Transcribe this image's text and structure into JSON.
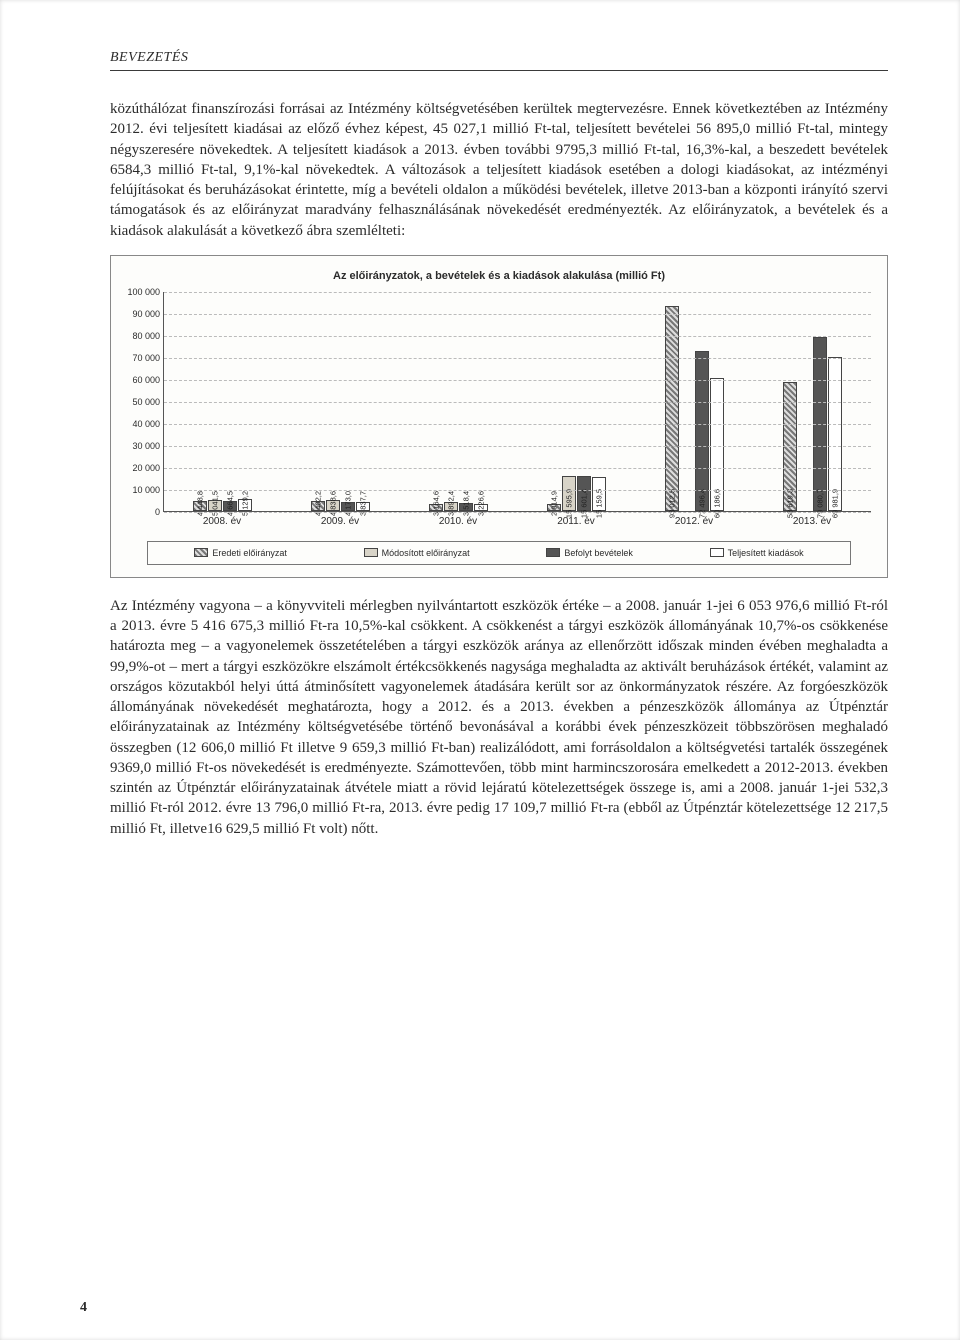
{
  "header": "BEVEZETÉS",
  "para1": "közúthálózat finanszírozási forrásai az Intézmény költségvetésében kerültek megtervezésre. Ennek következtében az Intézmény 2012. évi teljesített kiadásai az előző évhez képest, 45 027,1 millió Ft-tal, teljesített bevételei 56 895,0 millió Ft-tal, mintegy négyszeresére növekedtek. A teljesített kiadások a 2013. évben további 9795,3 millió Ft-tal, 16,3%-kal, a beszedett bevételek 6584,3 millió Ft-tal, 9,1%-kal növekedtek. A változások a teljesített kiadások esetében a dologi kiadásokat, az intézményi felújításokat és beruházásokat érintette, míg a bevételi oldalon a működési bevételek, illetve 2013-ban a központi irányító szervi támogatások és az előirányzat maradvány felhasználásának növekedését eredményezték. Az előirányzatok, a bevételek és a kiadások alakulását a következő ábra szemlélteti:",
  "chart": {
    "title": "Az előirányzatok, a bevételek és a kiadások alakulása (millió Ft)",
    "ymax": 100000,
    "ytick_step": 10000,
    "background": "#fdfdfb",
    "grid_color": "#bbbbbb",
    "categories": [
      "2008. év",
      "2009. év",
      "2010. év",
      "2011. év",
      "2012. év",
      "2013. év"
    ],
    "series_colors": [
      "#8a8a8a",
      "#d8d4c8",
      "#555555",
      "#ffffff"
    ],
    "series_patterns": [
      "hatched",
      "light",
      "dark",
      "white"
    ],
    "legend": [
      "Eredeti előirányzat",
      "Módosított előirányzat",
      "Befolyt bevételek",
      "Teljesített kiadások"
    ],
    "data": [
      [
        "4 448,8",
        "5 041,5",
        "4 664,5",
        "5 129,2"
      ],
      [
        "4 402,2",
        "4 838,6",
        "4 173,0",
        "3 837,7"
      ],
      [
        "3 164,6",
        "3 892,4",
        "3 518,4",
        "3 226,6"
      ],
      [
        "2 914,9",
        "15 595,9",
        "15 601,4",
        "15 159,5"
      ],
      [
        "93 012,5",
        "",
        "72 496,4",
        "60 186,6"
      ],
      [
        "58 619,3",
        "",
        "79 080,7",
        "69 981,9"
      ]
    ],
    "data_numeric": [
      [
        4448.8,
        5041.5,
        4664.5,
        5129.2
      ],
      [
        4402.2,
        4838.6,
        4173.0,
        3837.7
      ],
      [
        3164.6,
        3892.4,
        3518.4,
        3226.6
      ],
      [
        2914.9,
        15595.9,
        15601.4,
        15159.5
      ],
      [
        93012.5,
        0,
        72496.4,
        60186.6
      ],
      [
        58619.3,
        0,
        79080.7,
        69981.9
      ]
    ]
  },
  "para2": "Az Intézmény vagyona – a könyvviteli mérlegben nyilvántartott eszközök értéke – a 2008. január 1-jei 6 053 976,6 millió Ft-ról a 2013. évre 5 416 675,3 millió Ft-ra 10,5%-kal csökkent. A csökkenést a tárgyi eszközök állományának 10,7%-os csökkenése határozta meg – a vagyonelemek összetételében a tárgyi eszközök aránya az ellenőrzött időszak minden évében meghaladta a 99,9%-ot – mert a tárgyi eszközökre elszámolt értékcsökkenés nagysága meghaladta az aktivált beruházások értékét, valamint az országos közutakból helyi úttá átminősített vagyonelemek átadására került sor az önkormányzatok részére. Az forgóeszközök állományának növekedését meghatározta, hogy a 2012. és a 2013. években a pénzeszközök állománya az Útpénztár előirányzatainak az Intézmény költségvetésébe történő bevonásával a korábbi évek pénzeszközeit többszörösen meghaladó összegben (12 606,0 millió Ft illetve 9 659,3 millió Ft-ban) realizálódott, ami forrásoldalon a költségvetési tartalék összegének 9369,0 millió Ft-os növekedését is eredményezte. Számottevően, több mint harmincszorosára emelkedett a 2012-2013. években szintén az Útpénztár előirányzatainak átvétele miatt a rövid lejáratú kötelezettségek összege is, ami a 2008. január 1-jei 532,3 millió Ft-ról 2012. évre 13 796,0 millió Ft-ra, 2013. évre pedig 17 109,7 millió Ft-ra (ebből az Útpénztár kötelezettsége 12 217,5 millió Ft, illetve16 629,5 millió Ft volt) nőtt.",
  "page_number": "4"
}
